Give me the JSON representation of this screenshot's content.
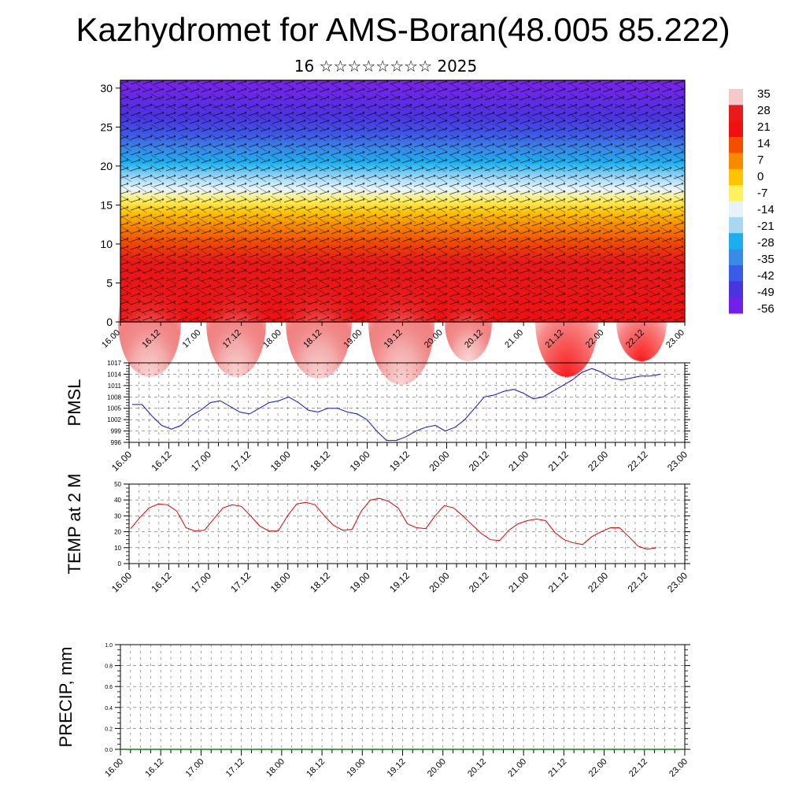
{
  "title": "Kazhydromet for AMS-Boran(48.005 85.222)",
  "subtitle": "16 ☆☆☆☆☆☆☆☆ 2025",
  "chart_data": [
    {
      "type": "heatmap",
      "name": "temperature-wind-cross-section",
      "x_ticks": [
        "16.00",
        "16.12",
        "17.00",
        "17.12",
        "18.00",
        "18.12",
        "19.00",
        "19.12",
        "20.00",
        "20.12",
        "21.00",
        "21.12",
        "22.00",
        "22.12",
        "23.00"
      ],
      "y_ticks": [
        0,
        5,
        10,
        15,
        20,
        25,
        30
      ],
      "ylim": [
        0,
        31
      ],
      "colorbar_labels": [
        "35",
        "28",
        "21",
        "14",
        "7",
        "0",
        "-7",
        "-14",
        "-21",
        "-28",
        "-35",
        "-42",
        "-49",
        "-56"
      ],
      "colorbar_colors": [
        "#f7c8c8",
        "#e81a1a",
        "#f01010",
        "#f25000",
        "#f78a00",
        "#ffc400",
        "#fff060",
        "#e6f4fa",
        "#a8d8f0",
        "#1ab0f0",
        "#3a8ae8",
        "#3a5ae8",
        "#4a34e0",
        "#7020e8"
      ]
    },
    {
      "type": "line",
      "ylabel": "PMSL",
      "ylim": [
        996,
        1017
      ],
      "y_ticks": [
        996,
        999,
        1002,
        1005,
        1008,
        1011,
        1014,
        1017
      ],
      "x_ticks": [
        "16.00",
        "16.12",
        "17.00",
        "17.12",
        "18.00",
        "18.12",
        "19.00",
        "19.12",
        "20.00",
        "20.12",
        "21.00",
        "21.12",
        "22.00",
        "22.12",
        "23.00"
      ],
      "color": "#1010d0",
      "values": [
        1006,
        1006,
        1003,
        1000.5,
        999.5,
        1000.5,
        1003,
        1004.5,
        1006.5,
        1007,
        1005.5,
        1004,
        1003.5,
        1005,
        1006.5,
        1007,
        1008,
        1006.5,
        1004.5,
        1004,
        1005,
        1005,
        1004,
        1003.5,
        1002,
        999,
        996.5,
        996.5,
        997.5,
        999,
        1000,
        1000.5,
        999,
        1000,
        1002,
        1005,
        1008,
        1008.5,
        1009.5,
        1010,
        1009,
        1007.5,
        1008,
        1009.5,
        1011,
        1012.5,
        1014.5,
        1015.5,
        1014.5,
        1013,
        1012.5,
        1013,
        1013.5,
        1013.5,
        1014
      ]
    },
    {
      "type": "line",
      "ylabel": "TEMP at 2 M",
      "ylim": [
        0,
        50
      ],
      "y_ticks": [
        0,
        10,
        20,
        30,
        40,
        50
      ],
      "x_ticks": [
        "16.00",
        "16.12",
        "17.00",
        "17.12",
        "18.00",
        "18.12",
        "19.00",
        "19.12",
        "20.00",
        "20.12",
        "21.00",
        "21.12",
        "22.00",
        "22.12",
        "23.00"
      ],
      "color": "#e00000",
      "values": [
        22,
        29,
        35,
        37.5,
        37,
        33,
        22.5,
        20.5,
        21,
        28,
        35,
        37,
        36,
        30,
        23.5,
        20.5,
        20.5,
        30,
        37.5,
        38.5,
        37,
        30,
        24,
        21,
        21.5,
        33,
        40,
        41,
        39,
        35,
        25,
        22.5,
        22,
        30,
        36.5,
        35,
        30,
        24.5,
        19,
        15,
        14.5,
        21,
        25,
        27,
        28,
        27,
        19.5,
        15,
        13,
        12,
        17,
        20,
        22.5,
        22.5,
        17,
        11,
        9,
        10
      ]
    },
    {
      "type": "bar",
      "ylabel": "PRECIP, mm",
      "ylim": [
        0,
        1
      ],
      "y_ticks": [
        "0.0",
        "0.2",
        "0.4",
        "0.6",
        "0.8",
        "1.0"
      ],
      "x_ticks": [
        "16.00",
        "16.12",
        "17.00",
        "17.12",
        "18.00",
        "18.12",
        "19.00",
        "19.12",
        "20.00",
        "20.12",
        "21.00",
        "21.12",
        "22.00",
        "22.12",
        "23.00"
      ],
      "color": "#1a7a1a"
    }
  ]
}
